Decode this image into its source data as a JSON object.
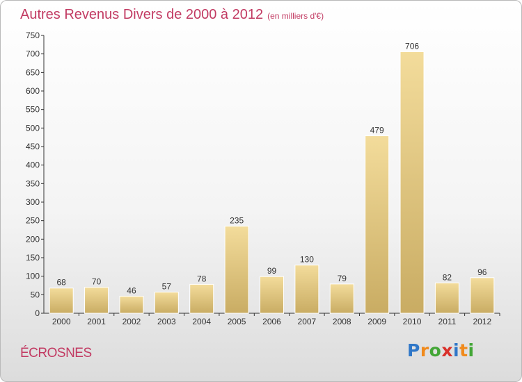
{
  "header": {
    "title": "Autres Revenus Divers de 2000 à 2012",
    "unit": "(en milliers d'€)"
  },
  "footer": {
    "commune": "ÉCROSNES",
    "logo": [
      "P",
      "r",
      "o",
      "x",
      "i",
      "t",
      "i"
    ],
    "logo_colors": [
      "#2f77c8",
      "#f08a1c",
      "#43a636",
      "#d9312b",
      "#2f77c8",
      "#f08a1c",
      "#43a636"
    ]
  },
  "colors": {
    "accent": "#c23b63",
    "bar_top": "#f3dc9b",
    "bar_bottom": "#c9ac63"
  },
  "chart_data": {
    "type": "bar",
    "title": "Autres Revenus Divers de 2000 à 2012",
    "subtitle": "(en milliers d'€)",
    "categories": [
      "2000",
      "2001",
      "2002",
      "2003",
      "2004",
      "2005",
      "2006",
      "2007",
      "2008",
      "2009",
      "2010",
      "2011",
      "2012"
    ],
    "values": [
      68,
      70,
      46,
      57,
      78,
      235,
      99,
      130,
      79,
      479,
      706,
      82,
      96
    ],
    "xlabel": "",
    "ylabel": "",
    "ylim": [
      0,
      750
    ],
    "yticks": [
      0,
      50,
      100,
      150,
      200,
      250,
      300,
      350,
      400,
      450,
      500,
      550,
      600,
      650,
      700,
      750
    ],
    "grid": false,
    "data_labels": true
  }
}
